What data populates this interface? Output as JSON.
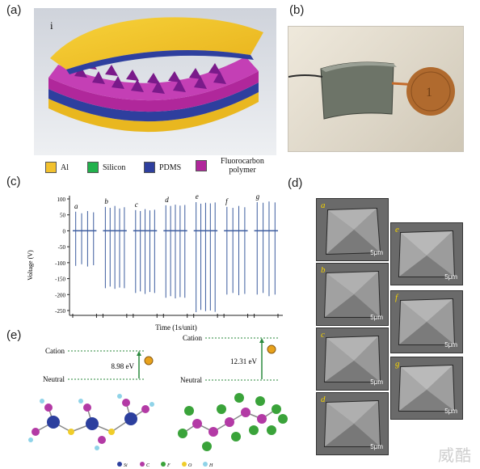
{
  "panels": {
    "a": {
      "label": "(a)",
      "inset": "i"
    },
    "b": {
      "label": "(b)"
    },
    "c": {
      "label": "(c)"
    },
    "d": {
      "label": "(d)"
    },
    "e": {
      "label": "(e)"
    }
  },
  "legend": [
    {
      "label": "Al",
      "color": "#f2c12e"
    },
    {
      "label": "Silicon",
      "color": "#22b14c"
    },
    {
      "label": "PDMS",
      "color": "#2e3f9e"
    },
    {
      "label": "Fluorocarbon polymer",
      "color": "#b0279b"
    }
  ],
  "chart_data": {
    "type": "line",
    "xlabel": "Time (1s/unit)",
    "ylabel": "Voltage (V)",
    "ylim": [
      -250,
      100
    ],
    "yticks": [
      "100",
      "50",
      "0",
      "-50",
      "-100",
      "-150",
      "-200",
      "-250"
    ],
    "segment_labels": [
      "a",
      "b",
      "c",
      "d",
      "e",
      "f",
      "g"
    ],
    "series": [
      {
        "segment": "a",
        "pulses": [
          {
            "max": 60,
            "min": -110
          },
          {
            "max": 55,
            "min": -105
          },
          {
            "max": 62,
            "min": -112
          },
          {
            "max": 58,
            "min": -108
          }
        ]
      },
      {
        "segment": "b",
        "pulses": [
          {
            "max": 75,
            "min": -180
          },
          {
            "max": 72,
            "min": -175
          },
          {
            "max": 78,
            "min": -182
          },
          {
            "max": 70,
            "min": -178
          },
          {
            "max": 74,
            "min": -180
          }
        ]
      },
      {
        "segment": "c",
        "pulses": [
          {
            "max": 65,
            "min": -195
          },
          {
            "max": 62,
            "min": -190
          },
          {
            "max": 68,
            "min": -198
          },
          {
            "max": 64,
            "min": -192
          },
          {
            "max": 66,
            "min": -195
          }
        ]
      },
      {
        "segment": "d",
        "pulses": [
          {
            "max": 80,
            "min": -210
          },
          {
            "max": 78,
            "min": -205
          },
          {
            "max": 82,
            "min": -212
          },
          {
            "max": 79,
            "min": -208
          },
          {
            "max": 81,
            "min": -210
          }
        ]
      },
      {
        "segment": "e",
        "pulses": [
          {
            "max": 90,
            "min": -255
          },
          {
            "max": 85,
            "min": -248
          },
          {
            "max": 88,
            "min": -252
          },
          {
            "max": 86,
            "min": -250
          },
          {
            "max": 89,
            "min": -254
          }
        ]
      },
      {
        "segment": "f",
        "pulses": [
          {
            "max": 75,
            "min": -200
          },
          {
            "max": 72,
            "min": -195
          },
          {
            "max": 78,
            "min": -202
          },
          {
            "max": 74,
            "min": -198
          }
        ]
      },
      {
        "segment": "g",
        "pulses": [
          {
            "max": 90,
            "min": -200
          },
          {
            "max": 88,
            "min": -195
          },
          {
            "max": 92,
            "min": -205
          },
          {
            "max": 89,
            "min": -200
          }
        ]
      }
    ]
  },
  "energy_diagrams": [
    {
      "top_label": "Cation",
      "bottom_label": "Neutral",
      "value": "8.98 eV"
    },
    {
      "top_label": "Cation",
      "bottom_label": "Neutral",
      "value": "12.31 eV"
    }
  ],
  "sem_images": [
    {
      "letter": "a",
      "scale": "5μm"
    },
    {
      "letter": "e",
      "scale": "5μm"
    },
    {
      "letter": "b",
      "scale": "5μm"
    },
    {
      "letter": "f",
      "scale": "5μm"
    },
    {
      "letter": "c",
      "scale": "5μm"
    },
    {
      "letter": "g",
      "scale": "5μm"
    },
    {
      "letter": "d",
      "scale": "5μm"
    }
  ],
  "atom_legend": [
    "Si",
    "C",
    "F",
    "O",
    "H"
  ],
  "atom_colors": [
    "#2c3f9e",
    "#b33aa5",
    "#3aa33a",
    "#f0cd2a",
    "#8fd3e8"
  ],
  "watermark": "威酷"
}
